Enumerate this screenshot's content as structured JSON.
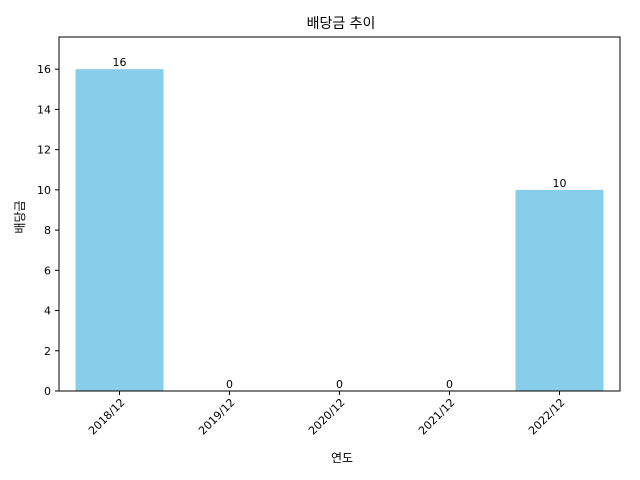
{
  "chart_data": {
    "type": "bar",
    "title": "배당금 추이",
    "xlabel": "연도",
    "ylabel": "배당금",
    "categories": [
      "2018/12",
      "2019/12",
      "2020/12",
      "2021/12",
      "2022/12"
    ],
    "values": [
      16,
      0,
      0,
      0,
      10
    ],
    "ylim": [
      0,
      17.6
    ],
    "yticks": [
      0,
      2,
      4,
      6,
      8,
      10,
      12,
      14,
      16
    ],
    "bar_color": "#87CEEB",
    "grid": false,
    "legend": "none"
  }
}
